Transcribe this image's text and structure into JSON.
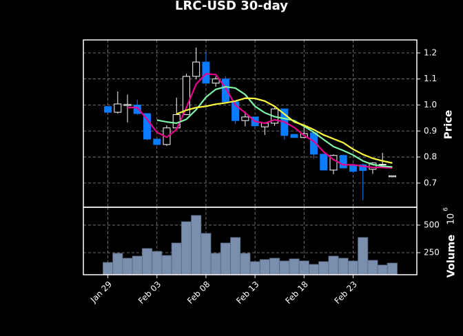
{
  "chart_data": {
    "type": "candlestick",
    "title": "LRC-USD 30-day",
    "ylabel": "Price",
    "categories": [
      "Jan 29",
      null,
      null,
      null,
      null,
      "Feb 03",
      null,
      null,
      null,
      null,
      "Feb 08",
      null,
      null,
      null,
      null,
      "Feb 13",
      null,
      null,
      null,
      null,
      "Feb 18",
      null,
      null,
      null,
      null,
      "Feb 23",
      null,
      null,
      null,
      null
    ],
    "xlim": [
      -2.5,
      31.5
    ],
    "open": [
      0.994,
      0.972,
      0.998,
      1.0,
      0.967,
      0.869,
      0.848,
      0.912,
      0.963,
      1.11,
      1.165,
      1.084,
      1.1,
      1.012,
      0.94,
      0.954,
      0.916,
      0.93,
      0.985,
      0.887,
      0.875,
      0.893,
      0.811,
      0.75,
      0.806,
      0.77,
      0.77,
      0.753,
      0.77,
      0.724
    ],
    "high": [
      0.994,
      1.052,
      1.04,
      1.02,
      0.967,
      0.869,
      0.922,
      1.028,
      1.12,
      1.221,
      1.205,
      1.11,
      1.11,
      1.015,
      0.975,
      0.954,
      0.93,
      0.99,
      0.985,
      0.887,
      0.914,
      0.893,
      0.811,
      0.81,
      0.81,
      0.775,
      0.775,
      0.78,
      0.816,
      0.728
    ],
    "low": [
      0.972,
      0.967,
      0.933,
      0.963,
      0.865,
      0.845,
      0.843,
      0.905,
      0.963,
      1.1,
      1.084,
      1.07,
      1.012,
      0.927,
      0.918,
      0.91,
      0.885,
      0.92,
      0.867,
      0.875,
      0.875,
      0.793,
      0.75,
      0.734,
      0.758,
      0.74,
      0.634,
      0.735,
      0.76,
      0.722
    ],
    "close": [
      0.972,
      1.004,
      1.002,
      0.967,
      0.869,
      0.848,
      0.912,
      0.963,
      1.11,
      1.165,
      1.084,
      1.1,
      1.012,
      0.94,
      0.954,
      0.92,
      0.93,
      0.985,
      0.883,
      0.875,
      0.89,
      0.811,
      0.75,
      0.806,
      0.758,
      0.745,
      0.748,
      0.777,
      0.772,
      0.728
    ],
    "up_color": "#000000",
    "down_color": "#0a7cff",
    "series": [
      {
        "color": "#e8008c",
        "values": [
          null,
          null,
          0.99,
          0.99,
          0.945,
          0.895,
          0.876,
          0.906,
          0.99,
          1.08,
          1.12,
          1.117,
          1.065,
          1.0,
          0.97,
          0.937,
          0.93,
          0.943,
          0.935,
          0.914,
          0.883,
          0.86,
          0.82,
          0.79,
          0.77,
          0.77,
          0.765,
          0.76,
          0.76,
          0.758
        ]
      },
      {
        "color": "#80f5a8",
        "values": [
          null,
          null,
          null,
          null,
          null,
          0.942,
          0.935,
          0.93,
          0.945,
          0.982,
          1.03,
          1.06,
          1.07,
          1.065,
          1.04,
          0.995,
          0.97,
          0.955,
          0.948,
          0.94,
          0.918,
          0.895,
          0.867,
          0.84,
          0.825,
          0.808,
          0.785,
          0.771,
          0.765,
          0.762
        ]
      },
      {
        "color": "#ffff40",
        "values": [
          null,
          null,
          null,
          null,
          null,
          null,
          null,
          0.965,
          0.98,
          0.99,
          0.995,
          1.003,
          1.008,
          1.015,
          1.026,
          1.025,
          1.015,
          0.995,
          0.965,
          0.935,
          0.922,
          0.905,
          0.885,
          0.87,
          0.855,
          0.83,
          0.81,
          0.795,
          0.785,
          0.777
        ]
      }
    ],
    "ylim": [
      0.607,
      1.25
    ],
    "yticks": [
      0.7,
      0.8,
      0.9,
      {
        "value": 1,
        "label": "1.0"
      },
      1.1,
      1.2
    ],
    "grid": true,
    "volume": {
      "label": "Volume",
      "multiplier": "10",
      "exponent": "6",
      "color": "#7a8fae",
      "values": [
        162,
        244,
        200,
        219,
        288,
        262,
        225,
        338,
        531,
        588,
        425,
        244,
        338,
        388,
        244,
        169,
        188,
        200,
        175,
        194,
        175,
        144,
        169,
        219,
        200,
        175,
        388,
        181,
        138,
        156
      ],
      "ylim": [
        50,
        662
      ],
      "yticks": [
        250,
        500
      ]
    }
  }
}
